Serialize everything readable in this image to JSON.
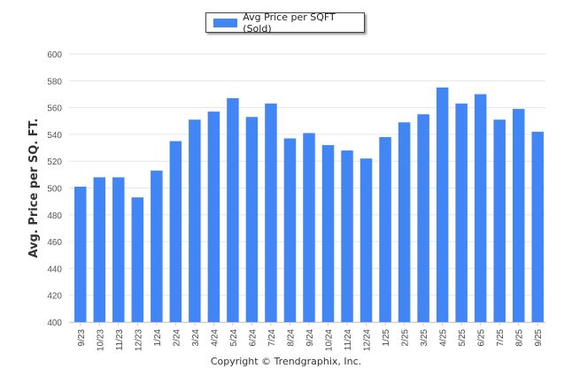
{
  "chart_data": {
    "type": "bar",
    "title": "",
    "xlabel": "",
    "ylabel": "Avg. Price per SQ. FT.",
    "ylim": [
      400,
      600
    ],
    "yticks": [
      400,
      420,
      440,
      460,
      480,
      500,
      520,
      540,
      560,
      580,
      600
    ],
    "grid": true,
    "legend_position": "top-center",
    "categories": [
      "9/23",
      "10/23",
      "11/23",
      "12/23",
      "1/24",
      "2/24",
      "3/24",
      "4/24",
      "5/24",
      "6/24",
      "7/24",
      "8/24",
      "9/24",
      "10/24",
      "11/24",
      "12/24",
      "1/25",
      "2/25",
      "3/25",
      "4/25",
      "5/25",
      "6/25",
      "7/25",
      "8/25",
      "9/25"
    ],
    "series": [
      {
        "name": "Avg Price per SQFT (Sold)",
        "color": "#4285f4",
        "values": [
          501,
          508,
          508,
          493,
          513,
          535,
          551,
          557,
          567,
          553,
          563,
          537,
          541,
          532,
          528,
          522,
          538,
          549,
          555,
          575,
          563,
          570,
          551,
          559,
          542
        ]
      }
    ]
  },
  "footer": "Copyright © Trendgraphix, Inc."
}
